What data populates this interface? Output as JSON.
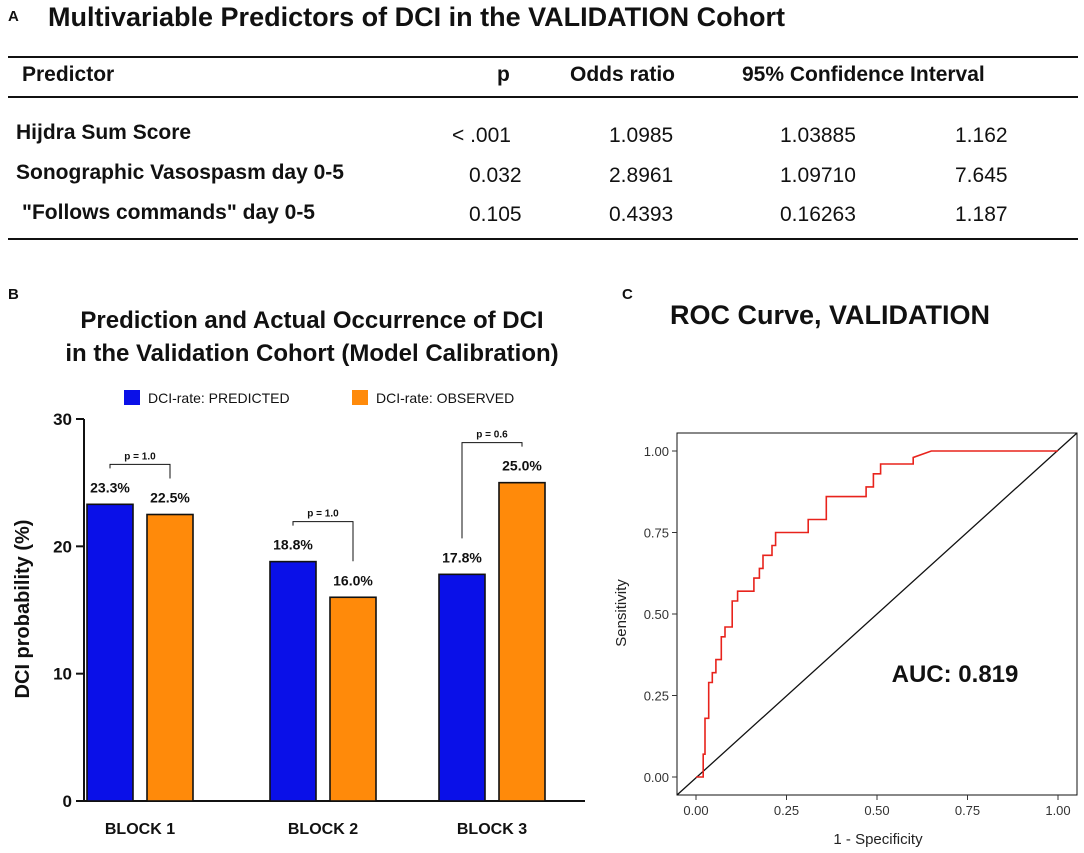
{
  "panel_a": {
    "label": "A",
    "title": "Multivariable Predictors of DCI in the VALIDATION Cohort",
    "headers": {
      "predictor": "Predictor",
      "p": "p",
      "or": "Odds ratio",
      "ci": "95% Confidence Interval"
    },
    "rows": [
      {
        "predictor": "Hijdra Sum Score",
        "p": "< .001",
        "or": "1.0985",
        "ci_low": "1.03885",
        "ci_high": "1.162"
      },
      {
        "predictor": "Sonographic Vasospasm day 0-5",
        "p": "0.032",
        "or": "2.8961",
        "ci_low": "1.09710",
        "ci_high": "7.645"
      },
      {
        "predictor": "\"Follows commands\" day 0-5",
        "p": "0.105",
        "or": "0.4393",
        "ci_low": "0.16263",
        "ci_high": "1.187"
      }
    ]
  },
  "chart_data": [
    {
      "panel": "B",
      "type": "bar",
      "title": "Prediction and Actual Occurrence of DCI",
      "subtitle": "in the Validation Cohort (Model Calibration)",
      "ylabel": "DCI probability (%)",
      "xlabel": "",
      "ylim": [
        0,
        30
      ],
      "yticks": [
        0,
        10,
        20,
        30
      ],
      "categories": [
        "BLOCK 1",
        "BLOCK 2",
        "BLOCK 3"
      ],
      "series": [
        {
          "name": "DCI-rate: PREDICTED",
          "color": "#0a10e8",
          "values": [
            23.3,
            18.8,
            17.8
          ],
          "labels": [
            "23.3%",
            "18.8%",
            "17.8%"
          ]
        },
        {
          "name": "DCI-rate: OBSERVED",
          "color": "#ff8a0a",
          "values": [
            22.5,
            16.0,
            25.0
          ],
          "labels": [
            "22.5%",
            "16.0%",
            "25.0%"
          ]
        }
      ],
      "comparisons": [
        "p = 1.0",
        "p = 1.0",
        "p = 0.6"
      ],
      "legend_position": "top"
    },
    {
      "panel": "C",
      "type": "line",
      "title": "ROC Curve, VALIDATION",
      "xlabel": "1 - Specificity",
      "ylabel": "Sensitivity",
      "xlim": [
        0,
        1
      ],
      "ylim": [
        0,
        1
      ],
      "xticks": [
        "0.00",
        "0.25",
        "0.50",
        "0.75",
        "1.00"
      ],
      "yticks": [
        "0.00",
        "0.25",
        "0.50",
        "0.75",
        "1.00"
      ],
      "annotation": "AUC: 0.819",
      "roc_color": "#e8231c",
      "reference_color": "#111111",
      "roc_points": [
        [
          0.0,
          0.0
        ],
        [
          0.02,
          0.0
        ],
        [
          0.02,
          0.07
        ],
        [
          0.025,
          0.07
        ],
        [
          0.025,
          0.18
        ],
        [
          0.035,
          0.18
        ],
        [
          0.035,
          0.29
        ],
        [
          0.045,
          0.29
        ],
        [
          0.045,
          0.32
        ],
        [
          0.055,
          0.32
        ],
        [
          0.055,
          0.36
        ],
        [
          0.07,
          0.36
        ],
        [
          0.07,
          0.43
        ],
        [
          0.08,
          0.43
        ],
        [
          0.08,
          0.46
        ],
        [
          0.1,
          0.46
        ],
        [
          0.1,
          0.54
        ],
        [
          0.115,
          0.54
        ],
        [
          0.115,
          0.57
        ],
        [
          0.16,
          0.57
        ],
        [
          0.16,
          0.61
        ],
        [
          0.175,
          0.61
        ],
        [
          0.175,
          0.64
        ],
        [
          0.185,
          0.64
        ],
        [
          0.185,
          0.68
        ],
        [
          0.21,
          0.68
        ],
        [
          0.21,
          0.71
        ],
        [
          0.22,
          0.71
        ],
        [
          0.22,
          0.75
        ],
        [
          0.31,
          0.75
        ],
        [
          0.31,
          0.79
        ],
        [
          0.36,
          0.79
        ],
        [
          0.36,
          0.86
        ],
        [
          0.47,
          0.86
        ],
        [
          0.47,
          0.89
        ],
        [
          0.49,
          0.89
        ],
        [
          0.49,
          0.93
        ],
        [
          0.51,
          0.93
        ],
        [
          0.51,
          0.96
        ],
        [
          0.6,
          0.96
        ],
        [
          0.6,
          0.98
        ],
        [
          0.65,
          1.0
        ],
        [
          1.0,
          1.0
        ]
      ]
    }
  ]
}
